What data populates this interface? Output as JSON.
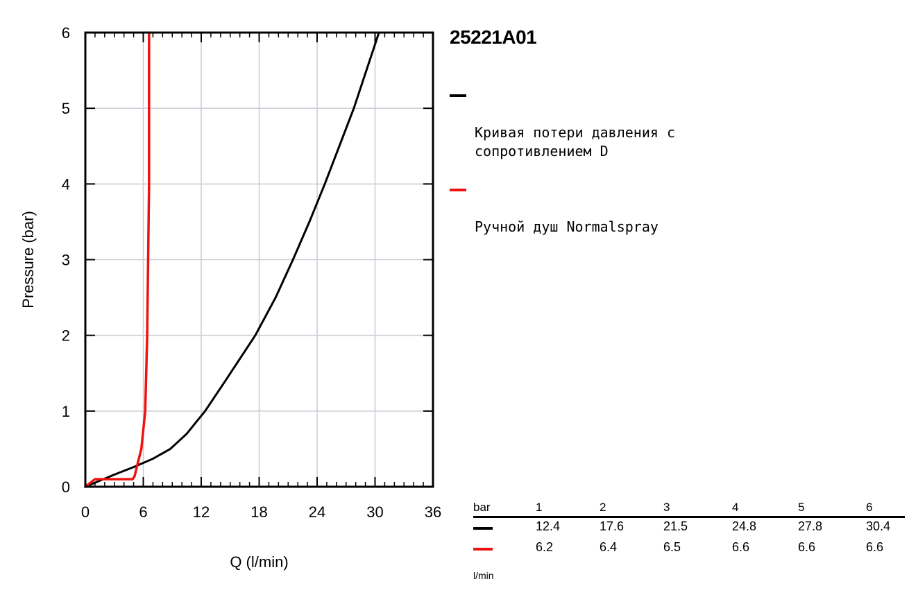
{
  "colors": {
    "series_black": "#000000",
    "series_red": "#ee1111",
    "grid": "#c8ccd4"
  },
  "chart_data": {
    "type": "line",
    "title": "25221A01",
    "xlabel": "Q (l/min)",
    "ylabel": "Pressure (bar)",
    "xlim": [
      0,
      36
    ],
    "ylim": [
      0,
      6
    ],
    "xticks": [
      "0",
      "6",
      "12",
      "18",
      "24",
      "30",
      "36"
    ],
    "yticks": [
      "0",
      "1",
      "2",
      "3",
      "4",
      "5",
      "6"
    ],
    "grid": true,
    "legend_position": "right",
    "series": [
      {
        "name": "Кривая потери давления с\nсопротивлением D",
        "color": "#000000",
        "x": [
          0,
          1.5,
          3,
          5,
          7,
          8.8,
          10.5,
          12.4,
          14.5,
          17.6,
          19.7,
          21.5,
          23.2,
          24.8,
          26.3,
          27.8,
          29.1,
          30.4
        ],
        "y": [
          0,
          0.08,
          0.16,
          0.26,
          0.37,
          0.5,
          0.7,
          1,
          1.4,
          2,
          2.5,
          3,
          3.5,
          4,
          4.5,
          5,
          5.5,
          6
        ]
      },
      {
        "name": "Ручной душ Normalspray",
        "color": "#ee1111",
        "x": [
          0,
          0.5,
          1,
          2,
          3,
          4,
          4.9,
          5.1,
          5.4,
          5.8,
          6.0,
          6.2,
          6.3,
          6.4,
          6.5,
          6.6,
          6.6,
          6.6
        ],
        "y": [
          0,
          0.05,
          0.1,
          0.1,
          0.1,
          0.1,
          0.1,
          0.14,
          0.3,
          0.5,
          0.75,
          1,
          1.5,
          2,
          3,
          4,
          5,
          6
        ]
      }
    ]
  },
  "table": {
    "header_label": "bar",
    "pressures": [
      "1",
      "2",
      "3",
      "4",
      "5",
      "6"
    ],
    "rows": [
      {
        "color": "#000000",
        "values": [
          "12.4",
          "17.6",
          "21.5",
          "24.8",
          "27.8",
          "30.4"
        ]
      },
      {
        "color": "#ee1111",
        "values": [
          "6.2",
          "6.4",
          "6.5",
          "6.6",
          "6.6",
          "6.6"
        ]
      }
    ],
    "unit_label": "l/min"
  }
}
